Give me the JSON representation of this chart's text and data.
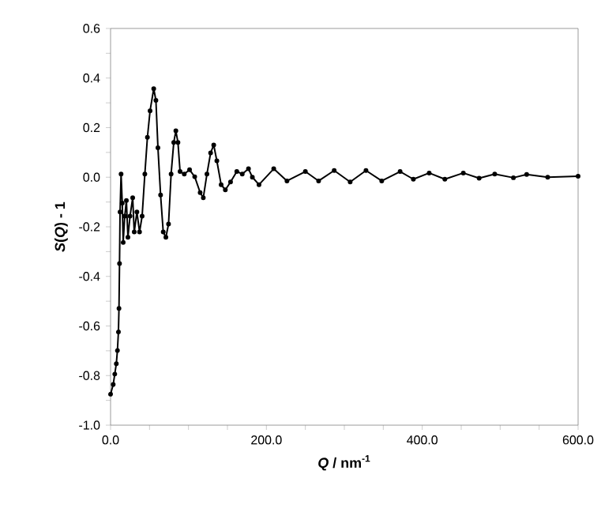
{
  "chart_data": {
    "type": "line",
    "xlabel": "*Q* / nm$^{-1}$",
    "ylabel": "*S*(*Q*) - 1",
    "marker": "circle",
    "line_style": "solid",
    "xlim": [
      0,
      600
    ],
    "ylim": [
      -1.0,
      0.6
    ],
    "xticks": [
      {
        "value": 0,
        "label": "0.0"
      },
      {
        "value": 50,
        "label": null
      },
      {
        "value": 100,
        "label": null
      },
      {
        "value": 150,
        "label": null
      },
      {
        "value": 200,
        "label": "200.0"
      },
      {
        "value": 250,
        "label": null
      },
      {
        "value": 300,
        "label": null
      },
      {
        "value": 350,
        "label": null
      },
      {
        "value": 400,
        "label": "400.0"
      },
      {
        "value": 450,
        "label": null
      },
      {
        "value": 500,
        "label": null
      },
      {
        "value": 550,
        "label": null
      },
      {
        "value": 600,
        "label": "600.0"
      }
    ],
    "yticks": [
      {
        "value": -1.0,
        "label": "-1.0"
      },
      {
        "value": -0.9,
        "label": null
      },
      {
        "value": -0.8,
        "label": "-0.8"
      },
      {
        "value": -0.7,
        "label": null
      },
      {
        "value": -0.6,
        "label": "-0.6"
      },
      {
        "value": -0.5,
        "label": null
      },
      {
        "value": -0.4,
        "label": "-0.4"
      },
      {
        "value": -0.3,
        "label": null
      },
      {
        "value": -0.2,
        "label": "-0.2"
      },
      {
        "value": -0.1,
        "label": null
      },
      {
        "value": 0.0,
        "label": "0.0"
      },
      {
        "value": 0.1,
        "label": null
      },
      {
        "value": 0.2,
        "label": "0.2"
      },
      {
        "value": 0.3,
        "label": null
      },
      {
        "value": 0.4,
        "label": "0.4"
      },
      {
        "value": 0.5,
        "label": null
      },
      {
        "value": 0.6,
        "label": "0.6"
      }
    ],
    "series": [
      {
        "color": "#000000",
        "x": [
          0,
          3.4,
          5.4,
          7.4,
          8.8,
          10.1,
          10.8,
          11.5,
          12.2,
          13.5,
          15,
          16.2,
          18.2,
          20.3,
          22.3,
          25,
          28.4,
          30.4,
          33.8,
          37.2,
          40.5,
          44,
          47.3,
          50.7,
          55.4,
          58.2,
          60.8,
          64.2,
          67.6,
          71,
          74.4,
          77.7,
          81.1,
          83.8,
          86.5,
          89.2,
          94.6,
          101.4,
          108,
          115,
          119,
          123.7,
          128.4,
          132.4,
          136.4,
          141.9,
          147.3,
          154,
          162,
          169,
          177,
          182,
          190.5,
          209.4,
          226.4,
          250,
          267,
          287,
          307.5,
          327.8,
          348,
          371.6,
          388.6,
          408.9,
          429,
          452.7,
          473,
          493,
          517,
          534,
          561,
          600
        ],
        "values": [
          -0.875,
          -0.836,
          -0.794,
          -0.752,
          -0.699,
          -0.624,
          -0.529,
          -0.348,
          -0.14,
          0.013,
          -0.104,
          -0.263,
          -0.157,
          -0.094,
          -0.242,
          -0.157,
          -0.083,
          -0.221,
          -0.14,
          -0.221,
          -0.157,
          0.013,
          0.161,
          0.268,
          0.357,
          0.31,
          0.119,
          -0.072,
          -0.221,
          -0.242,
          -0.189,
          0.013,
          0.14,
          0.187,
          0.14,
          0.023,
          0.013,
          0.03,
          0.002,
          -0.062,
          -0.083,
          0.013,
          0.098,
          0.13,
          0.066,
          -0.03,
          -0.051,
          -0.019,
          0.023,
          0.013,
          0.034,
          0.0,
          -0.03,
          0.034,
          -0.015,
          0.023,
          -0.015,
          0.027,
          -0.019,
          0.027,
          -0.015,
          0.023,
          -0.008,
          0.017,
          -0.008,
          0.017,
          -0.004,
          0.013,
          -0.002,
          0.011,
          0.0,
          0.004
        ]
      }
    ]
  }
}
